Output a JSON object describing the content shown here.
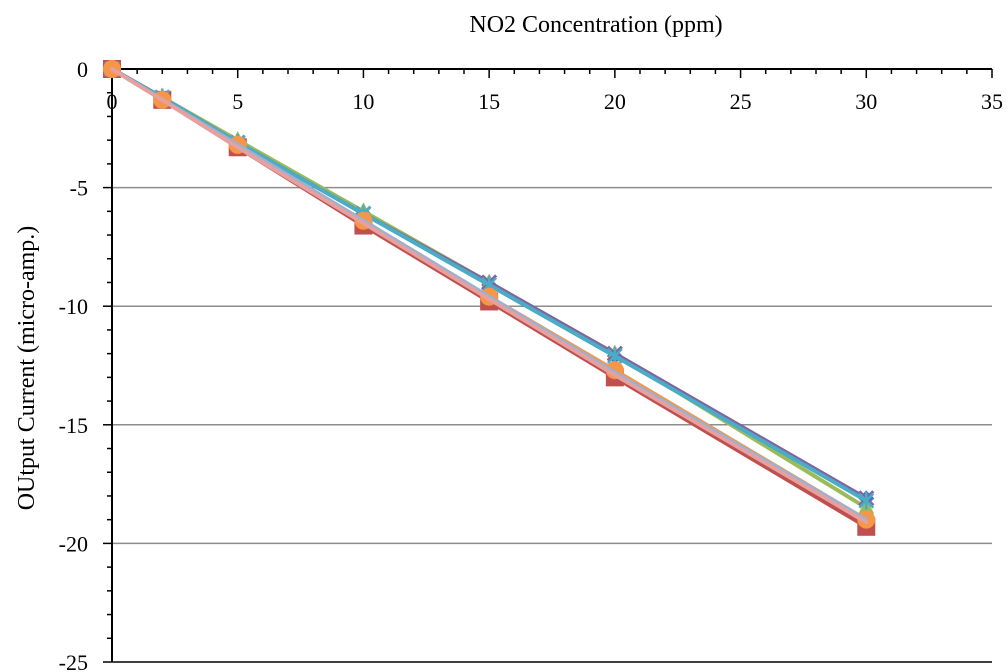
{
  "chart_data": {
    "type": "line",
    "title": "",
    "xlabel": "NO2 Concentration (ppm)",
    "ylabel": "OUtput Current (micro-amp.)",
    "xlim": [
      0,
      35
    ],
    "ylim": [
      -25,
      0
    ],
    "x_axis_position": "top",
    "x_ticks": [
      0,
      5,
      10,
      15,
      20,
      25,
      30,
      35
    ],
    "y_ticks": [
      0,
      -5,
      -10,
      -15,
      -20,
      -25
    ],
    "grid": "horizontal",
    "legend": "none",
    "x": [
      0,
      2,
      5,
      10,
      15,
      20,
      30
    ],
    "series": [
      {
        "color": "#4472c4",
        "marker": "diamond",
        "values": [
          0,
          -1.2,
          -3.1,
          -6.1,
          -9.1,
          -12.1,
          -18.1
        ]
      },
      {
        "color": "#c0504d",
        "marker": "square",
        "values": [
          0,
          -1.3,
          -3.3,
          -6.6,
          -9.8,
          -13.0,
          -19.3
        ]
      },
      {
        "color": "#9bbb59",
        "marker": "triangle",
        "values": [
          0,
          -1.2,
          -3.0,
          -6.0,
          -9.0,
          -12.0,
          -18.5
        ]
      },
      {
        "color": "#8064a2",
        "marker": "x",
        "values": [
          0,
          -1.2,
          -3.1,
          -6.1,
          -9.0,
          -12.0,
          -18.1
        ]
      },
      {
        "color": "#4bacc6",
        "marker": "star",
        "values": [
          0,
          -1.2,
          -3.1,
          -6.1,
          -9.1,
          -12.1,
          -18.2
        ]
      },
      {
        "color": "#f79646",
        "marker": "circle",
        "values": [
          0,
          -1.3,
          -3.2,
          -6.4,
          -9.6,
          -12.7,
          -19.0
        ]
      },
      {
        "color": "#95b3d7",
        "marker": "none",
        "values": [
          0,
          -1.3,
          -3.2,
          -6.4,
          -9.6,
          -12.8,
          -19.0
        ]
      },
      {
        "color": "#e6a0a0",
        "marker": "none",
        "values": [
          0,
          -1.3,
          -3.3,
          -6.5,
          -9.7,
          -12.9,
          -19.1
        ]
      }
    ]
  }
}
